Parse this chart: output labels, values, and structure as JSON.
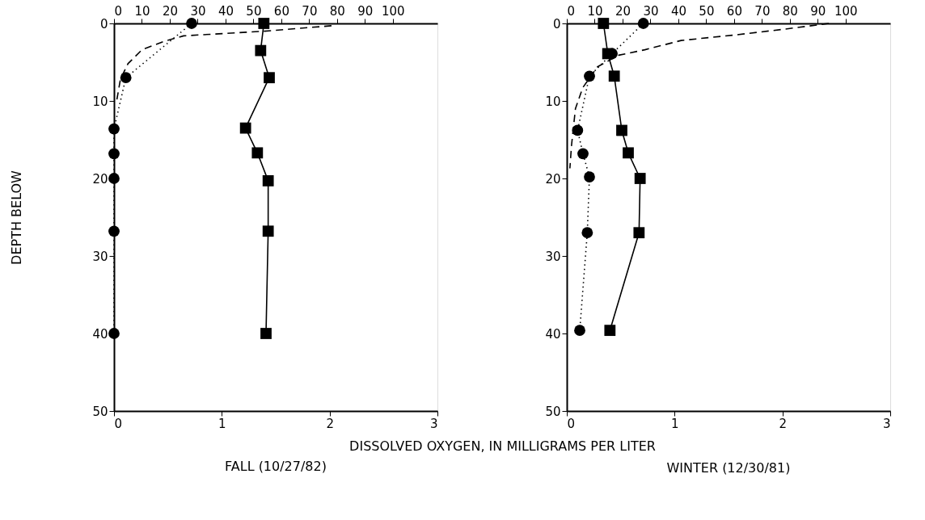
{
  "chart_data": [
    {
      "type": "line",
      "title": "FALL (10/27/82)",
      "xlabel": "DISSOLVED OXYGEN, IN MILLIGRAMS PER LITER",
      "ylabel": "DEPTH BELOW",
      "xlim": [
        0,
        3
      ],
      "xticks": [
        0,
        1,
        2,
        3
      ],
      "x2lim": [
        0,
        116
      ],
      "x2ticks": [
        0,
        10,
        20,
        30,
        40,
        50,
        60,
        70,
        80,
        90,
        100
      ],
      "ylim": [
        50,
        0
      ],
      "yticks": [
        0,
        10,
        20,
        30,
        40,
        50
      ],
      "grid": false,
      "series": [
        {
          "type": "line",
          "color": "#000000",
          "marker": "circle",
          "line_style": "dotted",
          "x": [
            0.72,
            0.11,
            0,
            0,
            0,
            0,
            0
          ],
          "values": [
            0,
            7,
            13.6,
            16.8,
            20,
            26.8,
            40
          ]
        },
        {
          "type": "line",
          "color": "#000000",
          "marker": "square",
          "line_style": "solid",
          "x": [
            1.39,
            1.36,
            1.44,
            1.22,
            1.33,
            1.43,
            1.43,
            1.41
          ],
          "values": [
            0,
            3.5,
            7,
            13.5,
            16.7,
            20.3,
            26.8,
            40
          ]
        },
        {
          "type": "line",
          "color": "#000000",
          "marker": "none",
          "line_style": "dashed",
          "axis": "x2",
          "x": [
            78,
            54,
            25,
            18,
            10,
            5,
            2.3,
            1
          ],
          "values": [
            0.3,
            1,
            1.6,
            2.3,
            3.4,
            5.2,
            7.2,
            9.9
          ]
        }
      ]
    },
    {
      "type": "line",
      "title": "WINTER (12/30/81)",
      "xlim": [
        0,
        3
      ],
      "xticks": [
        0,
        1,
        2,
        3
      ],
      "x2lim": [
        0,
        116
      ],
      "x2ticks": [
        0,
        10,
        20,
        30,
        40,
        50,
        60,
        70,
        80,
        90,
        100
      ],
      "ylim": [
        50,
        0
      ],
      "yticks": [
        0,
        10,
        20,
        30,
        40,
        50
      ],
      "grid": false,
      "series": [
        {
          "type": "line",
          "color": "#000000",
          "marker": "square",
          "line_style": "solid",
          "x": [
            0.34,
            0.38,
            0.44,
            0.51,
            0.57,
            0.68,
            0.67,
            0.4
          ],
          "values": [
            0,
            3.9,
            6.8,
            13.8,
            16.7,
            20,
            27,
            39.6
          ]
        },
        {
          "type": "line",
          "color": "#000000",
          "marker": "circle",
          "line_style": "dotted",
          "x": [
            0.71,
            0.42,
            0.21,
            0.1,
            0.15,
            0.21,
            0.19,
            0.12
          ],
          "values": [
            0,
            3.9,
            6.8,
            13.8,
            16.8,
            19.8,
            27,
            39.6
          ]
        },
        {
          "type": "line",
          "color": "#000000",
          "marker": "none",
          "line_style": "dashed",
          "axis": "x2",
          "x": [
            94,
            79,
            60,
            41,
            28,
            18.6,
            11,
            5.7,
            3.1,
            1.7,
            1.1
          ],
          "values": [
            0,
            0.7,
            1.5,
            2.2,
            3.4,
            4.1,
            5.6,
            8.3,
            11,
            15.7,
            18.7
          ]
        }
      ]
    }
  ]
}
